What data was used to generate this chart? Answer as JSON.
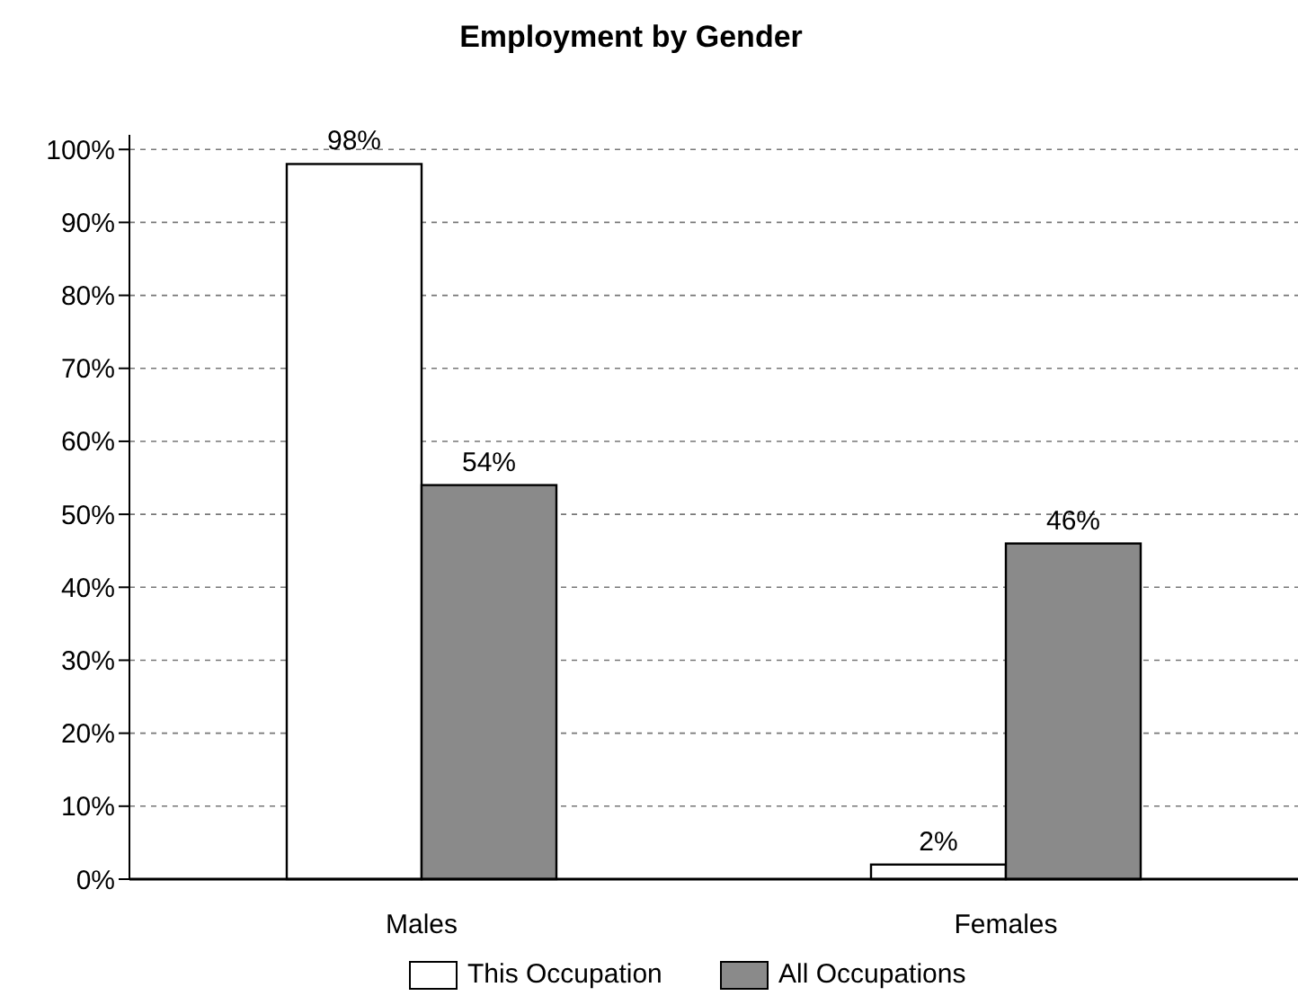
{
  "chart_data": {
    "type": "bar",
    "title": "Employment by Gender",
    "categories": [
      "Males",
      "Females"
    ],
    "series": [
      {
        "name": "This Occupation",
        "color": "#ffffff",
        "values": [
          98,
          2
        ]
      },
      {
        "name": "All Occupations",
        "color": "#8a8a8a",
        "values": [
          54,
          46
        ]
      }
    ],
    "ylim": [
      0,
      102
    ],
    "yticks": [
      {
        "value": 0,
        "label": "0%"
      },
      {
        "value": 10,
        "label": "10%"
      },
      {
        "value": 20,
        "label": "20%"
      },
      {
        "value": 30,
        "label": "30%"
      },
      {
        "value": 40,
        "label": "40%"
      },
      {
        "value": 50,
        "label": "50%"
      },
      {
        "value": 60,
        "label": "60%"
      },
      {
        "value": 70,
        "label": "70%"
      },
      {
        "value": 80,
        "label": "80%"
      },
      {
        "value": 90,
        "label": "90%"
      },
      {
        "value": 100,
        "label": "100%"
      }
    ],
    "value_labels": [
      [
        "98%",
        "2%"
      ],
      [
        "54%",
        "46%"
      ]
    ],
    "grid": true,
    "legend": "bottom"
  }
}
